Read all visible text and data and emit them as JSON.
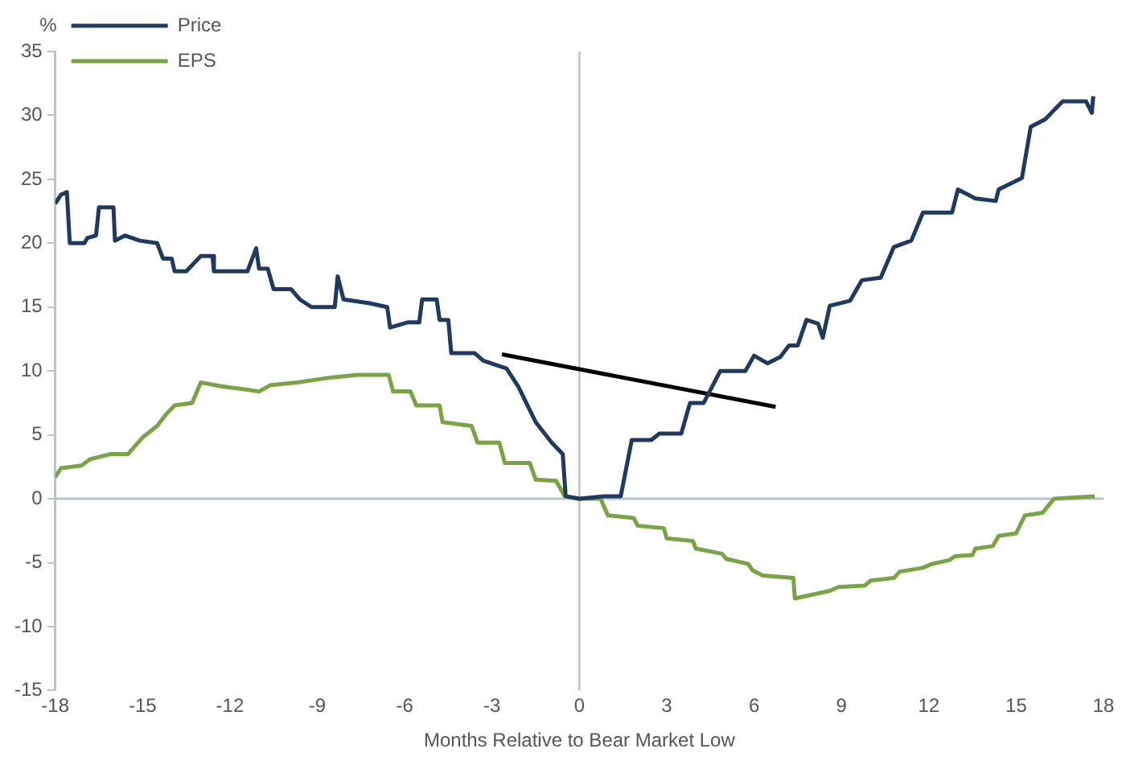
{
  "chart_data": {
    "type": "line",
    "xlabel": "Months Relative to Bear Market Low",
    "ylabel": "%",
    "xlim": [
      -18,
      18
    ],
    "xticks": [
      -18,
      -15,
      -12,
      -9,
      -6,
      -3,
      0,
      3,
      6,
      9,
      12,
      15,
      18
    ],
    "ylim": [
      -15,
      35
    ],
    "yticks": [
      -15,
      -10,
      -5,
      0,
      5,
      10,
      15,
      20,
      25,
      30,
      35
    ],
    "grid": false,
    "legend": "top left",
    "marker": "none",
    "line_style": "solid",
    "ref_lines": [
      {
        "axis": "y",
        "value": 0,
        "color": "#b4c4d4"
      },
      {
        "axis": "x",
        "value": 0,
        "color": "#c8c8c8"
      }
    ],
    "series": [
      {
        "name": "Price",
        "color": "#1f3a5f",
        "x": [
          -18,
          -17.8,
          -17.6,
          -17.5,
          -17,
          -16.9,
          -16.6,
          -16.5,
          -16,
          -15.95,
          -15.6,
          -15.1,
          -14.5,
          -14.3,
          -14,
          -13.9,
          -13.5,
          -13,
          -12.6,
          -12.55,
          -11.4,
          -11.1,
          -11,
          -10.7,
          -10.5,
          -9.9,
          -9.6,
          -9.2,
          -8.4,
          -8.3,
          -8.1,
          -7.2,
          -6.6,
          -6.5,
          -5.9,
          -5.5,
          -5.4,
          -4.9,
          -4.8,
          -4.5,
          -4.4,
          -3.6,
          -3.3,
          -2.5,
          -2.1,
          -1.5,
          -0.95,
          -0.57,
          -0.47,
          0,
          0.85,
          1.42,
          1.8,
          2.47,
          2.75,
          3.5,
          3.8,
          4.27,
          4.84,
          5.7,
          6,
          6.46,
          6.9,
          7.2,
          7.5,
          7.8,
          8.2,
          8.36,
          8.6,
          9.3,
          9.7,
          10.35,
          10.8,
          11.4,
          11.8,
          12.8,
          13,
          13.6,
          14.3,
          14.4,
          15.2,
          15.5,
          16,
          16.3,
          16.6,
          17.4,
          17.6,
          17.65
        ],
        "values": [
          23.1,
          23.8,
          24,
          20,
          20,
          20.4,
          20.6,
          22.8,
          22.8,
          20.2,
          20.6,
          20.2,
          20,
          18.8,
          18.8,
          17.8,
          17.8,
          19,
          19,
          17.8,
          17.8,
          19.6,
          18,
          18,
          16.4,
          16.4,
          15.6,
          15,
          15,
          17.4,
          15.6,
          15.3,
          15,
          13.4,
          13.8,
          13.8,
          15.6,
          15.6,
          14,
          14,
          11.4,
          11.4,
          10.8,
          10.2,
          8.8,
          6,
          4.4,
          3.5,
          0.2,
          0,
          0.2,
          0.2,
          4.6,
          4.6,
          5.1,
          5.1,
          7.5,
          7.5,
          10,
          10,
          11.2,
          10.6,
          11.1,
          12,
          12,
          14,
          13.7,
          12.6,
          15.1,
          15.5,
          17.1,
          17.3,
          19.7,
          20.2,
          22.4,
          22.4,
          24.2,
          23.5,
          23.3,
          24.2,
          25.1,
          29.1,
          29.7,
          30.4,
          31.1,
          31.1,
          30.2,
          31.5
        ]
      },
      {
        "name": "EPS",
        "color": "#79a446",
        "x": [
          -18,
          -17.8,
          -17.1,
          -16.8,
          -16.1,
          -15.5,
          -15,
          -14.5,
          -14.2,
          -13.9,
          -13.3,
          -13,
          -12.3,
          -11.6,
          -11,
          -10.6,
          -9.7,
          -8.5,
          -7.6,
          -6.55,
          -6.4,
          -5.8,
          -5.6,
          -4.8,
          -4.7,
          -3.7,
          -3.5,
          -2.75,
          -2.56,
          -1.7,
          -1.5,
          -0.8,
          -0.5,
          0,
          0.73,
          0.98,
          1.87,
          2,
          2.9,
          3,
          3.9,
          4,
          4.9,
          5.05,
          5.8,
          5.95,
          6.3,
          7.35,
          7.4,
          8,
          8.6,
          8.9,
          9.8,
          10,
          10.8,
          11,
          11.8,
          12.1,
          12.7,
          12.9,
          13.5,
          13.6,
          14.2,
          14.4,
          15,
          15.3,
          15.9,
          16.3,
          17.7
        ],
        "values": [
          1.7,
          2.4,
          2.6,
          3.1,
          3.5,
          3.5,
          4.8,
          5.7,
          6.6,
          7.3,
          7.5,
          9.1,
          8.8,
          8.6,
          8.4,
          8.9,
          9.1,
          9.5,
          9.7,
          9.7,
          8.4,
          8.4,
          7.3,
          7.3,
          6,
          5.7,
          4.4,
          4.4,
          2.8,
          2.8,
          1.5,
          1.4,
          0.2,
          0,
          0,
          -1.3,
          -1.5,
          -2.1,
          -2.3,
          -3.1,
          -3.3,
          -3.9,
          -4.3,
          -4.7,
          -5.1,
          -5.6,
          -6,
          -6.2,
          -7.8,
          -7.5,
          -7.2,
          -6.9,
          -6.8,
          -6.4,
          -6.2,
          -5.7,
          -5.4,
          -5.1,
          -4.8,
          -4.5,
          -4.4,
          -3.9,
          -3.7,
          -2.9,
          -2.7,
          -1.3,
          -1.1,
          0,
          0.2
        ]
      },
      {
        "type": "line",
        "color": "#000000",
        "x": [
          -2.66,
          6.74
        ],
        "values": [
          11.3,
          7.2
        ]
      }
    ]
  }
}
